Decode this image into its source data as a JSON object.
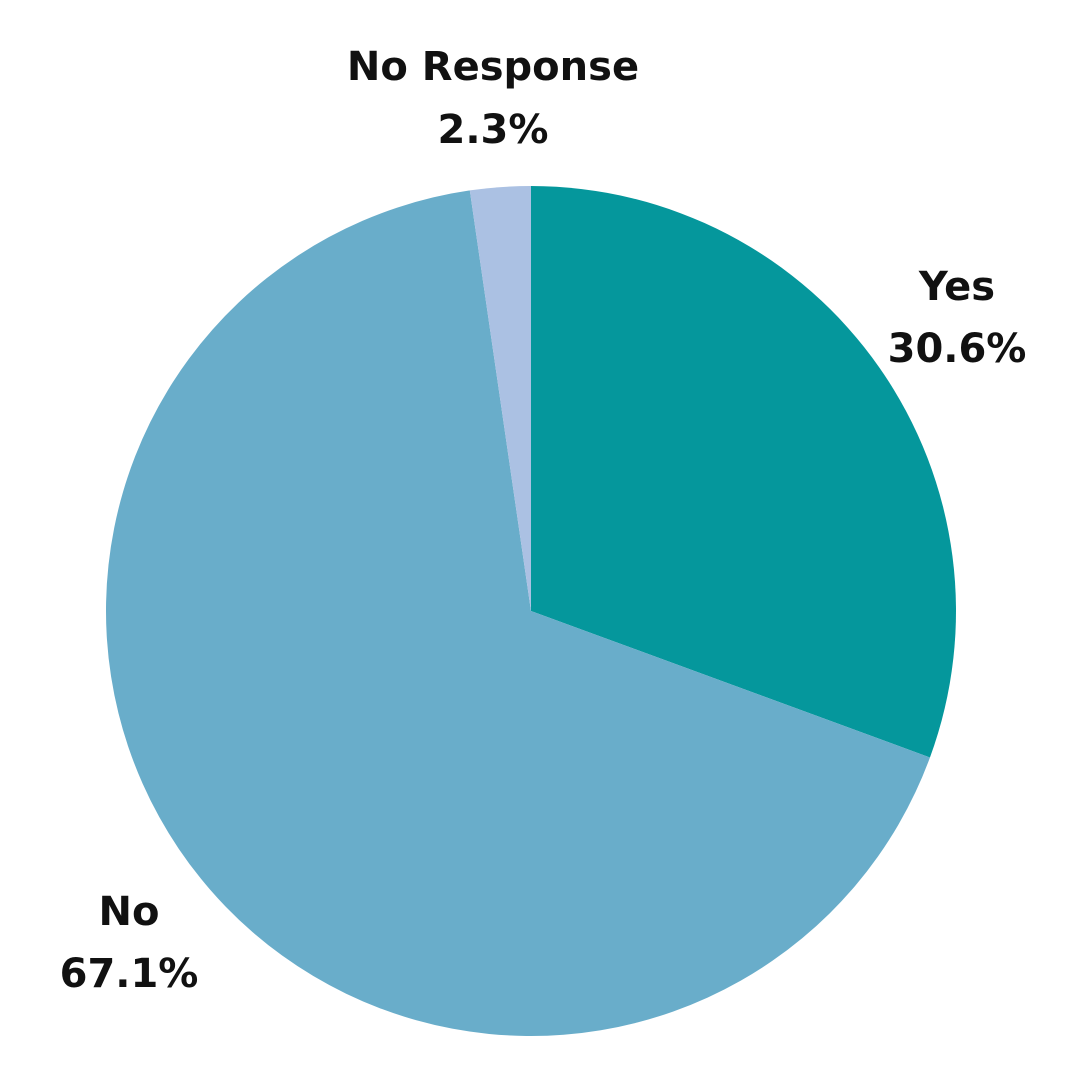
{
  "chart_data": {
    "type": "pie",
    "title": "",
    "start_angle_deg": 0,
    "direction": "clockwise",
    "slices": [
      {
        "label": "Yes",
        "value": 30.6,
        "value_label": "30.6%",
        "color": "#05979c"
      },
      {
        "label": "No",
        "value": 67.1,
        "value_label": "67.1%",
        "color": "#69adca"
      },
      {
        "label": "No Response",
        "value": 2.3,
        "value_label": "2.3%",
        "color": "#abc1e3"
      }
    ]
  }
}
